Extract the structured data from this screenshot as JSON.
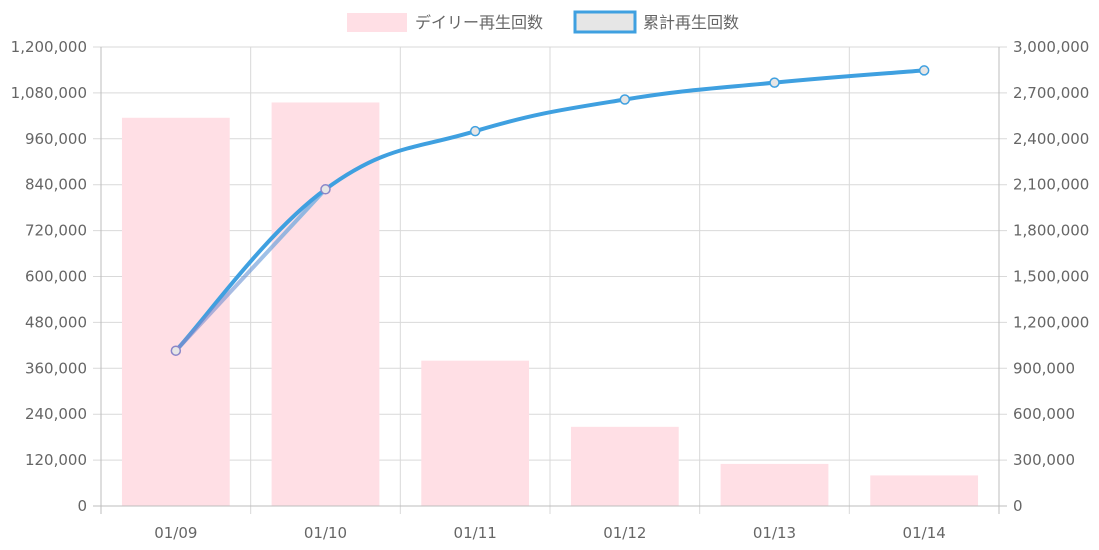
{
  "chart_data": {
    "type": "bar",
    "categories": [
      "01/09",
      "01/10",
      "01/11",
      "01/12",
      "01/13",
      "01/14"
    ],
    "series": [
      {
        "name": "デイリー再生回数",
        "type": "bar",
        "axis": "left",
        "values": [
          1015000,
          1055000,
          380000,
          207000,
          110000,
          80000
        ]
      },
      {
        "name": "累計再生回数",
        "type": "line",
        "axis": "right",
        "values": [
          1015000,
          2070000,
          2450000,
          2657000,
          2767000,
          2847000
        ]
      }
    ],
    "left_axis": {
      "ylim": [
        0,
        1200000
      ],
      "ticks": [
        "0",
        "120,000",
        "240,000",
        "360,000",
        "480,000",
        "600,000",
        "720,000",
        "840,000",
        "960,000",
        "1,080,000",
        "1,200,000"
      ]
    },
    "right_axis": {
      "ylim": [
        0,
        3000000
      ],
      "ticks": [
        "0",
        "300,000",
        "600,000",
        "900,000",
        "1,200,000",
        "1,500,000",
        "1,800,000",
        "2,100,000",
        "2,400,000",
        "2,700,000",
        "3,000,000"
      ]
    },
    "grid": true,
    "legend_position": "top",
    "colors": {
      "bar_fill": "#ffdfe5",
      "line": "#3fa0e0",
      "line_start": "#8a86c8",
      "grid": "#d9d9d9",
      "axis": "#bdbdbd",
      "legend_line_box_fill": "#e6e6e6"
    }
  }
}
